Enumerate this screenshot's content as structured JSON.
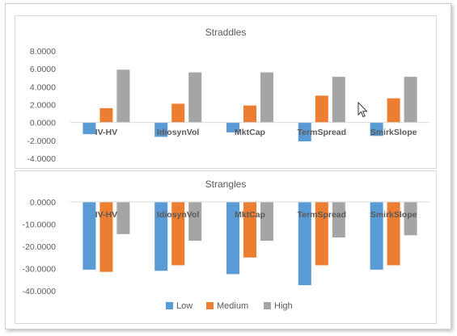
{
  "colors": {
    "Low": "#5b9bd5",
    "Medium": "#ed7d31",
    "High": "#a5a5a5"
  },
  "chart_data": [
    {
      "type": "bar",
      "title": "Straddles",
      "categories": [
        "IV-HV",
        "IdiosynVol",
        "MktCap",
        "TermSpread",
        "SmirkSlope"
      ],
      "series": [
        {
          "name": "Low",
          "values": [
            -1.3,
            -1.6,
            -1.1,
            -2.1,
            -1.5
          ]
        },
        {
          "name": "Medium",
          "values": [
            1.6,
            2.1,
            1.9,
            3.0,
            2.7
          ]
        },
        {
          "name": "High",
          "values": [
            5.9,
            5.6,
            5.6,
            5.1,
            5.1
          ]
        }
      ],
      "ylim": [
        -4,
        8
      ],
      "yticks": [
        "8.0000",
        "6.0000",
        "4.0000",
        "2.0000",
        "0.0000",
        "-2.0000",
        "-4.0000"
      ],
      "grid": false,
      "legend": ""
    },
    {
      "type": "bar",
      "title": "Strangles",
      "categories": [
        "IV-HV",
        "IdiosynVol",
        "MktCap",
        "TermSpread",
        "SmirkSlope"
      ],
      "series": [
        {
          "name": "Low",
          "values": [
            -30.5,
            -31.0,
            -32.5,
            -37.5,
            -30.5
          ]
        },
        {
          "name": "Medium",
          "values": [
            -31.5,
            -28.5,
            -25.0,
            -28.5,
            -28.5
          ]
        },
        {
          "name": "High",
          "values": [
            -14.5,
            -17.5,
            -17.5,
            -16.0,
            -15.0
          ]
        }
      ],
      "ylim": [
        -40,
        0
      ],
      "yticks": [
        "0.0000",
        "-10.0000",
        "-20.0000",
        "-30.0000",
        "-40.0000"
      ],
      "grid": false,
      "legend": "bottom"
    }
  ]
}
